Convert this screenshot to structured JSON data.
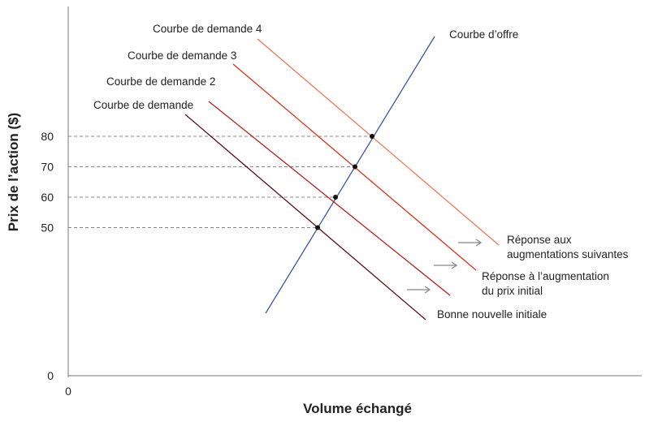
{
  "chart_data": {
    "type": "line",
    "title": "",
    "xlabel": "Volume échangé",
    "ylabel": "Prix de l’action ($)",
    "x_origin_label": "0",
    "y_ticks": [
      0,
      50,
      60,
      70,
      80
    ],
    "grid": false,
    "colors": {
      "supply": "#3a55a8",
      "demand1": "#5b0f0f",
      "demand2": "#b51f1f",
      "demand3": "#d8341c",
      "demand4": "#ec7a55",
      "guide": "#888888",
      "arrow": "#888888",
      "point": "#111111"
    },
    "series": [
      {
        "name": "Courbe d’offre",
        "key": "supply"
      },
      {
        "name": "Courbe de demande",
        "key": "demand1"
      },
      {
        "name": "Courbe de demande 2",
        "key": "demand2"
      },
      {
        "name": "Courbe de demande 3",
        "key": "demand3"
      },
      {
        "name": "Courbe de demande 4",
        "key": "demand4"
      }
    ],
    "equilibrium_prices": [
      50,
      60,
      70,
      80
    ],
    "annotations": [
      {
        "line1": "Bonne nouvelle initiale",
        "line2": ""
      },
      {
        "line1": "Réponse à l’augmentation",
        "line2": "du prix initial"
      },
      {
        "line1": "Réponse aux",
        "line2": "augmentations suivantes"
      }
    ]
  }
}
